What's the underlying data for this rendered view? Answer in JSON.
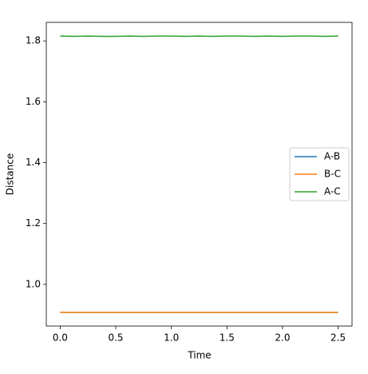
{
  "chart_data": {
    "type": "line",
    "xlabel": "Time",
    "ylabel": "Distance",
    "x": [
      0,
      0.125,
      0.25,
      0.375,
      0.5,
      0.625,
      0.75,
      0.875,
      1,
      1.125,
      1.25,
      1.375,
      1.5,
      1.625,
      1.75,
      1.875,
      2,
      2.125,
      2.25,
      2.375,
      2.5
    ],
    "series": [
      {
        "name": "A-B",
        "color": "#1f77b4",
        "values": [
          0.908,
          0.908,
          0.908,
          0.908,
          0.908,
          0.908,
          0.908,
          0.908,
          0.908,
          0.908,
          0.908,
          0.908,
          0.908,
          0.908,
          0.908,
          0.908,
          0.908,
          0.908,
          0.908,
          0.908,
          0.908
        ]
      },
      {
        "name": "B-C",
        "color": "#ff7f0e",
        "values": [
          0.908,
          0.908,
          0.908,
          0.908,
          0.908,
          0.908,
          0.908,
          0.908,
          0.908,
          0.908,
          0.908,
          0.908,
          0.908,
          0.908,
          0.908,
          0.908,
          0.908,
          0.908,
          0.908,
          0.908,
          0.908
        ]
      },
      {
        "name": "A-C",
        "color": "#2ca02c",
        "values": [
          1.816,
          1.815,
          1.816,
          1.815,
          1.815,
          1.816,
          1.815,
          1.816,
          1.816,
          1.815,
          1.816,
          1.815,
          1.816,
          1.816,
          1.815,
          1.816,
          1.815,
          1.816,
          1.816,
          1.815,
          1.816
        ]
      }
    ],
    "xlim": [
      -0.125,
      2.625
    ],
    "ylim": [
      0.863,
      1.861
    ],
    "xticks": [
      {
        "value": 0,
        "label": "0.0"
      },
      0.5,
      {
        "value": 1,
        "label": "1.0"
      },
      1.5,
      {
        "value": 2,
        "label": "2.0"
      },
      2.5
    ],
    "yticks": [
      {
        "value": 1,
        "label": "1.0"
      },
      1.2,
      1.4,
      1.6,
      1.8
    ],
    "legend": "center right"
  }
}
